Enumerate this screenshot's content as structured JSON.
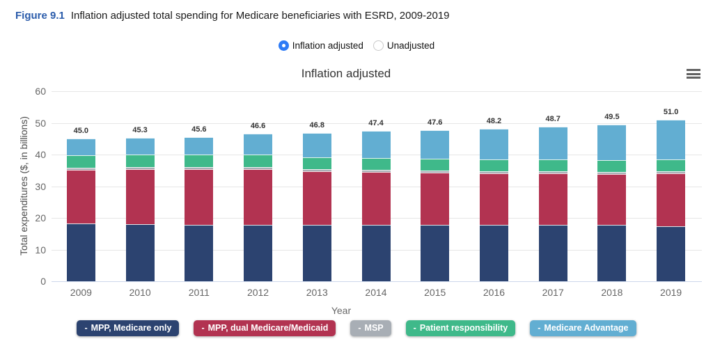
{
  "header": {
    "figure_label": "Figure 9.1",
    "figure_title": "Inflation adjusted total spending for Medicare beneficiaries with ESRD, 2009-2019"
  },
  "view_toggle": {
    "options": [
      {
        "label": "Inflation adjusted",
        "selected": true
      },
      {
        "label": "Unadjusted",
        "selected": false
      }
    ]
  },
  "chart": {
    "title": "Inflation adjusted",
    "menu_icon": "hamburger-menu-icon"
  },
  "chart_data": {
    "type": "bar",
    "stacked": true,
    "title": "Inflation adjusted",
    "xlabel": "Year",
    "ylabel": "Total expenditures ($, in billions)",
    "ylim": [
      0,
      60
    ],
    "yticks": [
      0,
      10,
      20,
      30,
      40,
      50,
      60
    ],
    "grid": true,
    "legend_position": "bottom",
    "categories": [
      "2009",
      "2010",
      "2011",
      "2012",
      "2013",
      "2014",
      "2015",
      "2016",
      "2017",
      "2018",
      "2019"
    ],
    "series": [
      {
        "name": "MPP, Medicare only",
        "color": "#2c4370",
        "values": [
          18.2,
          18.0,
          17.9,
          17.9,
          17.9,
          17.8,
          17.8,
          17.7,
          17.7,
          17.7,
          17.3
        ]
      },
      {
        "name": "MPP, dual Medicare/Medicaid",
        "color": "#b23351",
        "values": [
          17.0,
          17.4,
          17.5,
          17.5,
          16.8,
          16.6,
          16.5,
          16.4,
          16.4,
          16.2,
          16.8
        ]
      },
      {
        "name": "MSP",
        "color": "#a8aeb5",
        "values": [
          0.7,
          0.6,
          0.6,
          0.7,
          0.6,
          0.8,
          0.7,
          0.7,
          0.7,
          0.7,
          0.7
        ]
      },
      {
        "name": "Patient responsibility",
        "color": "#3fb98a",
        "values": [
          3.8,
          4.0,
          4.0,
          4.0,
          3.9,
          3.8,
          3.7,
          3.7,
          3.6,
          3.6,
          3.6
        ]
      },
      {
        "name": "Medicare Advantage",
        "color": "#62aed2",
        "values": [
          5.3,
          5.3,
          5.6,
          6.5,
          7.6,
          8.4,
          8.9,
          9.7,
          10.3,
          11.3,
          12.6
        ]
      }
    ],
    "totals": [
      "45.0",
      "45.3",
      "45.6",
      "46.6",
      "46.8",
      "47.4",
      "47.6",
      "48.2",
      "48.7",
      "49.5",
      "51.0"
    ]
  },
  "colors": {
    "figure_label_blue": "#2b5cab",
    "radio_selected_blue": "#2e7bf6",
    "gridline": "#e6e6e6",
    "axis_line": "#ccd6eb",
    "tick_text": "#666666",
    "title_text": "#333333"
  }
}
